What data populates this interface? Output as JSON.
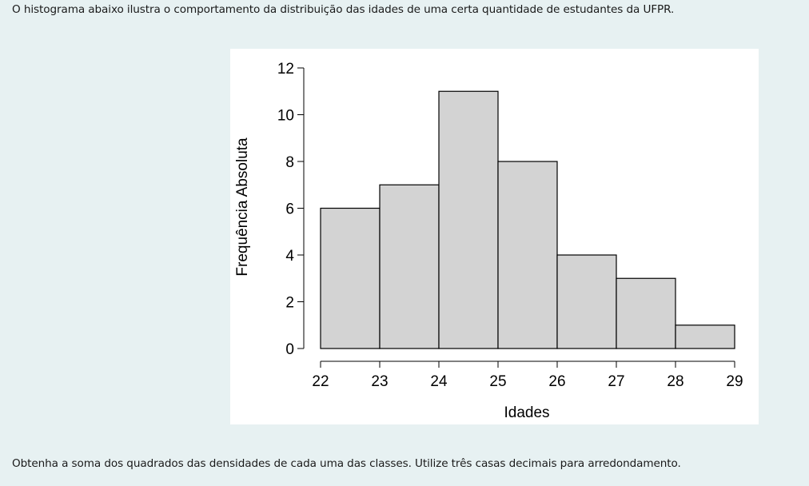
{
  "intro_text": "O histograma abaixo ilustra o comportamento da distribuição das idades de uma certa quantidade de estudantes da UFPR.",
  "question_text": "Obtenha a soma dos quadrados das densidades de cada uma das classes. Utilize três casas decimais para arredondamento.",
  "chart_data": {
    "type": "bar",
    "subtype": "histogram",
    "bins": [
      [
        22,
        23
      ],
      [
        23,
        24
      ],
      [
        24,
        25
      ],
      [
        25,
        26
      ],
      [
        26,
        27
      ],
      [
        27,
        28
      ],
      [
        28,
        29
      ]
    ],
    "values": [
      6,
      7,
      11,
      8,
      4,
      3,
      1
    ],
    "xticks": [
      22,
      23,
      24,
      25,
      26,
      27,
      28,
      29
    ],
    "yticks": [
      0,
      2,
      4,
      6,
      8,
      10,
      12
    ],
    "xlim": [
      22,
      29
    ],
    "ylim": [
      0,
      12
    ],
    "xlabel": "Idades",
    "ylabel": "Frequência Absoluta",
    "grid": false,
    "bar_color": "#d3d3d3",
    "edge_color": "#000000"
  }
}
